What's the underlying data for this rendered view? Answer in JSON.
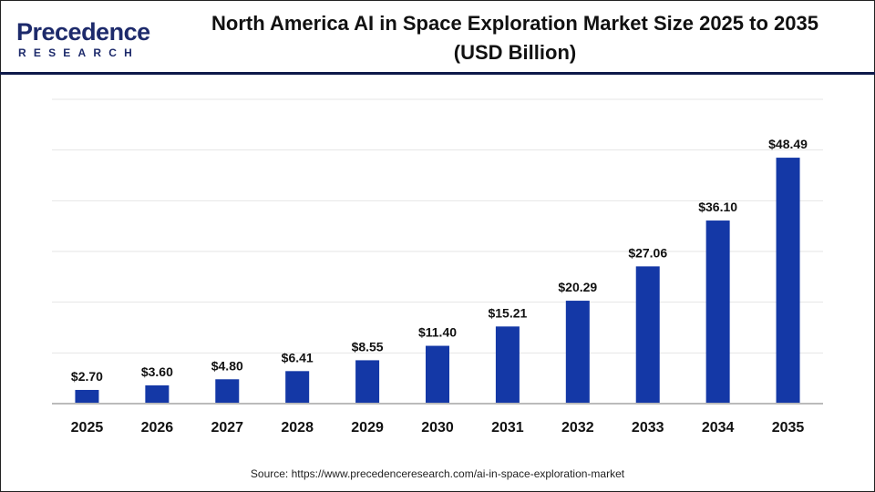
{
  "logo": {
    "main": "Precedence",
    "sub": "RESEARCH"
  },
  "title_line1": "North America AI in Space Exploration Market Size 2025 to 2035",
  "title_line2": "(USD Billion)",
  "source": "Source: https://www.precedenceresearch.com/ai-in-space-exploration-market",
  "colors": {
    "bar": "#1438a6",
    "grid": "#e6e6e6",
    "axis": "#bbbbbb"
  },
  "chart_data": {
    "type": "bar",
    "title": "North America AI in Space Exploration Market Size 2025 to 2035 (USD Billion)",
    "xlabel": "",
    "ylabel": "",
    "categories": [
      "2025",
      "2026",
      "2027",
      "2028",
      "2029",
      "2030",
      "2031",
      "2032",
      "2033",
      "2034",
      "2035"
    ],
    "values": [
      2.7,
      3.6,
      4.8,
      6.41,
      8.55,
      11.4,
      15.21,
      20.29,
      27.06,
      36.1,
      48.49
    ],
    "labels": [
      "$2.70",
      "$3.60",
      "$4.80",
      "$6.41",
      "$8.55",
      "$11.40",
      "$15.21",
      "$20.29",
      "$27.06",
      "$36.10",
      "$48.49"
    ],
    "ylim": [
      0,
      60
    ],
    "grid": true
  }
}
